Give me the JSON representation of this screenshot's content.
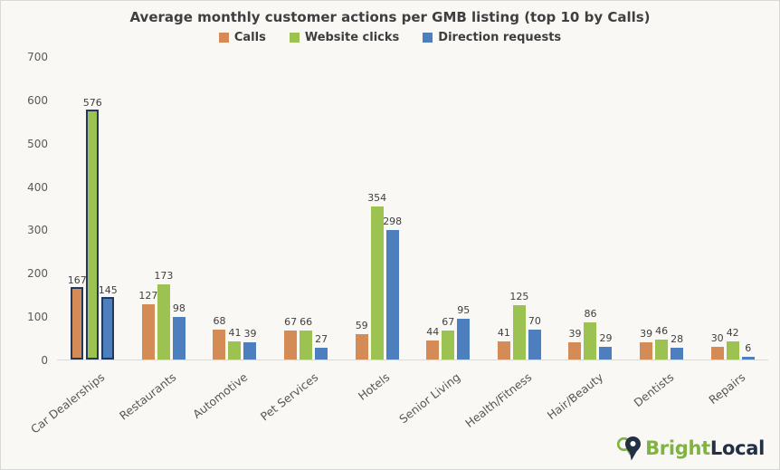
{
  "chart_data": {
    "type": "bar",
    "title": "Average monthly customer actions per GMB listing (top 10 by Calls)",
    "categories": [
      "Car Dealerships",
      "Restaurants",
      "Automotive",
      "Pet Services",
      "Hotels",
      "Senior Living",
      "Health/Fitness",
      "Hair/Beauty",
      "Dentists",
      "Repairs"
    ],
    "series": [
      {
        "name": "Calls",
        "color": "#d58b55",
        "values": [
          167,
          127,
          68,
          67,
          59,
          44,
          41,
          39,
          39,
          30
        ]
      },
      {
        "name": "Website clicks",
        "color": "#9cc351",
        "values": [
          576,
          173,
          41,
          66,
          354,
          67,
          125,
          86,
          46,
          42
        ]
      },
      {
        "name": "Direction requests",
        "color": "#4d7ebe",
        "values": [
          145,
          98,
          39,
          27,
          298,
          95,
          70,
          29,
          28,
          6
        ]
      }
    ],
    "ylim": [
      0,
      700
    ],
    "y_ticks": [
      0,
      100,
      200,
      300,
      400,
      500,
      600,
      700
    ],
    "legend_position": "top",
    "grid": false,
    "highlighted_category": "Car Dealerships",
    "highlight_border_color": "#24385c",
    "xlabel": "",
    "ylabel": ""
  },
  "branding": {
    "logo_icon": "map-pin-heart-icon",
    "logo_text_primary": "Bright",
    "logo_text_secondary": "Local",
    "logo_green": "#7fb441",
    "logo_navy": "#232f44"
  }
}
